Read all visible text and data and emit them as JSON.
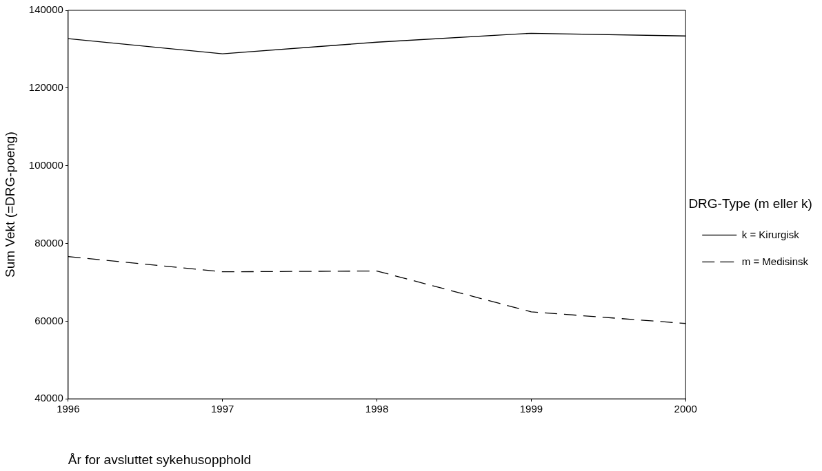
{
  "chart_data": {
    "type": "line",
    "xlabel": "År for avsluttet sykehusopphold",
    "ylabel": "Sum Vekt (=DRG-poeng)",
    "legend_title": "DRG-Type (m eller k)",
    "legend": "right",
    "grid": false,
    "marker": "none",
    "x": [
      1996,
      1997,
      1998,
      1999,
      2000
    ],
    "xlim": [
      1996,
      2000
    ],
    "xticks": [
      1996,
      1997,
      1998,
      1999,
      2000
    ],
    "ylim": [
      40000,
      140000
    ],
    "yticks": [
      40000,
      60000,
      80000,
      100000,
      120000,
      140000
    ],
    "series": [
      {
        "name": "k = Kirurgisk",
        "color": "#000000",
        "line_style": "solid",
        "values": [
          132700,
          128800,
          131800,
          134100,
          133400
        ]
      },
      {
        "name": "m = Medisinsk",
        "color": "#000000",
        "line_style": "dashed",
        "values": [
          76600,
          72700,
          72900,
          62400,
          59400
        ]
      }
    ]
  }
}
